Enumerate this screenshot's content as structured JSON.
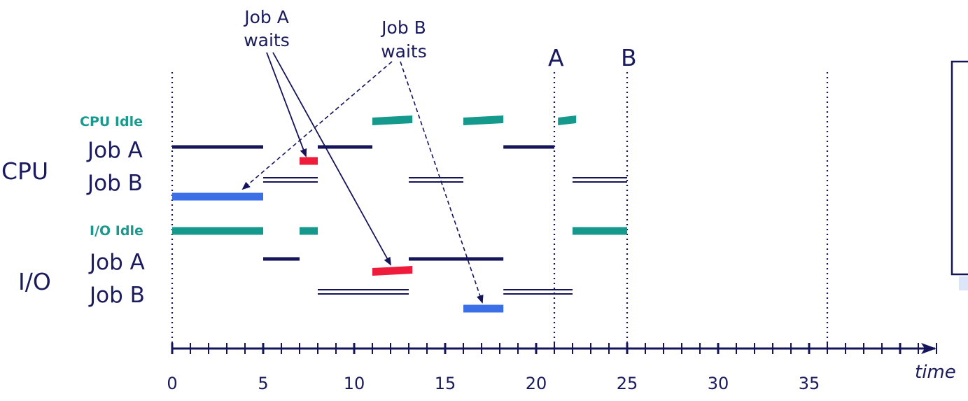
{
  "labels": {
    "cpu_group": "CPU",
    "io_group": "I/O",
    "cpu_idle": "CPU Idle",
    "cpu_job_a": "Job A",
    "cpu_job_b": "Job B",
    "io_idle": "I/O Idle",
    "io_job_a": "Job A",
    "io_job_b": "Job B",
    "axis_label": "time",
    "job_a_waits_line1": "Job A",
    "job_a_waits_line2": "waits",
    "job_b_waits_line1": "Job B",
    "job_b_waits_line2": "waits",
    "marker_a": "A",
    "marker_b": "B"
  },
  "axis": {
    "ticks": [
      "0",
      "5",
      "10",
      "15",
      "20",
      "25",
      "30",
      "35"
    ],
    "min": 0,
    "max": 42
  },
  "colors": {
    "navy": "#14145a",
    "teal": "#14998c",
    "red": "#ee1b3a",
    "blue": "#3a6fe8"
  },
  "timeline": {
    "cpu_idle": [
      [
        11,
        13.2
      ],
      [
        16,
        18.2
      ],
      [
        21.2,
        22.2
      ]
    ],
    "cpu_job_a_run": [
      [
        0,
        5
      ],
      [
        8,
        11
      ],
      [
        18.2,
        21
      ]
    ],
    "cpu_job_a_wait": [
      [
        7,
        8
      ]
    ],
    "cpu_job_b_ready": [
      [
        5,
        8
      ],
      [
        13,
        16
      ],
      [
        22,
        25
      ]
    ],
    "cpu_job_b_run": [
      [
        0,
        5
      ]
    ],
    "io_idle": [
      [
        0,
        5
      ],
      [
        7,
        8
      ],
      [
        22,
        25
      ]
    ],
    "io_job_a_run": [
      [
        5,
        7
      ],
      [
        13,
        18.2
      ]
    ],
    "io_job_a_wait": [
      [
        11,
        13.2
      ]
    ],
    "io_job_b_ready": [
      [
        8,
        13
      ],
      [
        18.2,
        22
      ]
    ],
    "io_job_b_run": [
      [
        16,
        18.2
      ]
    ],
    "dotted_markers": [
      0,
      21,
      25,
      36
    ]
  }
}
